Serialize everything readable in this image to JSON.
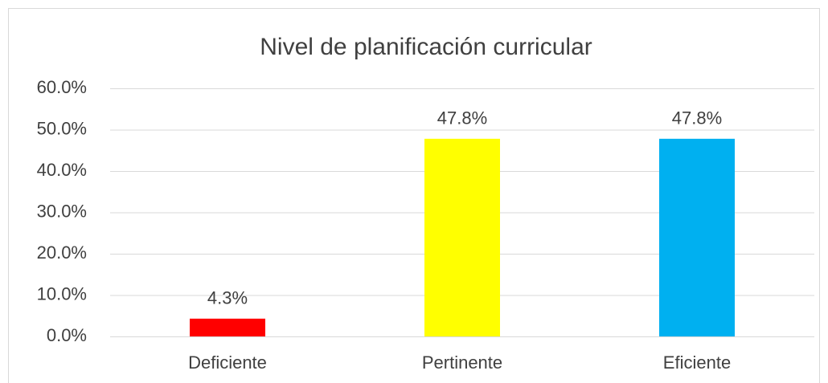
{
  "chart_data": {
    "type": "bar",
    "title": "Nivel de planificación curricular",
    "categories": [
      "Deficiente",
      "Pertinente",
      "Eficiente"
    ],
    "values": [
      4.3,
      47.8,
      47.8
    ],
    "value_labels": [
      "4.3%",
      "47.8%",
      "47.8%"
    ],
    "colors": [
      "#ff0000",
      "#ffff00",
      "#00b0f0"
    ],
    "ylim": [
      0,
      60
    ],
    "yticks": [
      {
        "value": 0,
        "label": "0.0%"
      },
      {
        "value": 10,
        "label": "10.0%"
      },
      {
        "value": 20,
        "label": "20.0%"
      },
      {
        "value": 30,
        "label": "30.0%"
      },
      {
        "value": 40,
        "label": "40.0%"
      },
      {
        "value": 50,
        "label": "50.0%"
      },
      {
        "value": 60,
        "label": "60.0%"
      }
    ],
    "grid": true
  }
}
